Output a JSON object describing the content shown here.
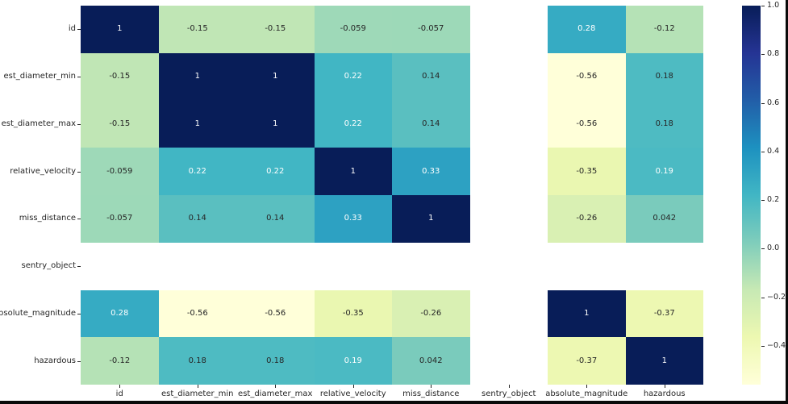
{
  "chart_data": {
    "type": "heatmap",
    "title": "",
    "xlabel": "",
    "ylabel": "",
    "labels": [
      "id",
      "est_diameter_min",
      "est_diameter_max",
      "relative_velocity",
      "miss_distance",
      "sentry_object",
      "absolute_magnitude",
      "hazardous"
    ],
    "matrix": [
      [
        1,
        -0.15,
        -0.15,
        -0.059,
        -0.057,
        null,
        0.28,
        -0.12
      ],
      [
        -0.15,
        1,
        1,
        0.22,
        0.14,
        null,
        -0.56,
        0.18
      ],
      [
        -0.15,
        1,
        1,
        0.22,
        0.14,
        null,
        -0.56,
        0.18
      ],
      [
        -0.059,
        0.22,
        0.22,
        1,
        0.33,
        null,
        -0.35,
        0.19
      ],
      [
        -0.057,
        0.14,
        0.14,
        0.33,
        1,
        null,
        -0.26,
        0.042
      ],
      [
        null,
        null,
        null,
        null,
        null,
        null,
        null,
        null
      ],
      [
        0.28,
        -0.56,
        -0.56,
        -0.35,
        -0.26,
        null,
        1,
        -0.37
      ],
      [
        -0.12,
        0.18,
        0.18,
        0.19,
        0.042,
        null,
        -0.37,
        1
      ]
    ],
    "annotations_visible": true,
    "grid": false,
    "colormap": {
      "name": "YlGnBu",
      "stops": [
        "#ffffd9",
        "#edf8b1",
        "#c7e9b4",
        "#7fcdbb",
        "#41b6c4",
        "#1d91c0",
        "#225ea8",
        "#253494",
        "#081d58"
      ]
    },
    "vmin": -0.56,
    "vmax": 1.0,
    "colorbar": {
      "position": "right",
      "ticks": [
        {
          "value": 1.0,
          "label": "1.0"
        },
        {
          "value": 0.8,
          "label": "0.8"
        },
        {
          "value": 0.6,
          "label": "0.6"
        },
        {
          "value": 0.4,
          "label": "0.4"
        },
        {
          "value": 0.2,
          "label": "0.2"
        },
        {
          "value": 0.0,
          "label": "0.0"
        },
        {
          "value": -0.2,
          "label": "−0.2"
        },
        {
          "value": -0.4,
          "label": "−0.4"
        }
      ]
    },
    "annotation_text_colors": {
      "dark": "#262626",
      "light": "#ffffff"
    },
    "background_color": "#ffffff",
    "window_edge_color": "#0a0a0a"
  }
}
